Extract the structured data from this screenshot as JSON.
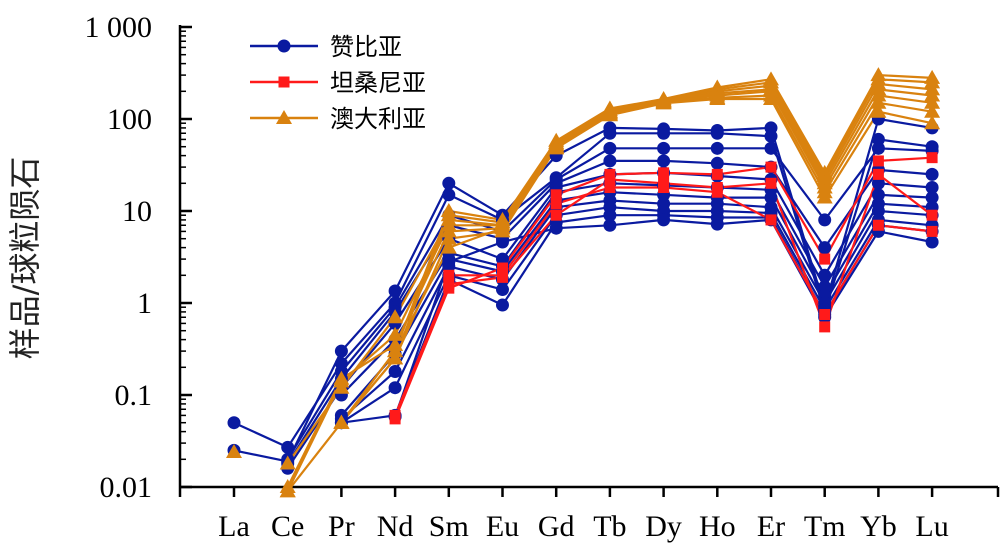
{
  "chart_data": {
    "type": "line",
    "title": "",
    "ylabel": "样品/球粒陨石",
    "xlabel": "",
    "categories": [
      "La",
      "Ce",
      "Pr",
      "Nd",
      "Sm",
      "Eu",
      "Gd",
      "Tb",
      "Dy",
      "Ho",
      "Er",
      "Tm",
      "Yb",
      "Lu"
    ],
    "y_scale": "log",
    "ylim": [
      0.01,
      1000
    ],
    "y_ticks": [
      {
        "value": 1000,
        "label": "1 000"
      },
      {
        "value": 100,
        "label": "100"
      },
      {
        "value": 10,
        "label": "10"
      },
      {
        "value": 1,
        "label": "1"
      },
      {
        "value": 0.1,
        "label": "0.1"
      },
      {
        "value": 0.01,
        "label": "0.01"
      }
    ],
    "grid": false,
    "legend_position": "top-left",
    "colors": {
      "zambia": "#0a1aa0",
      "tanzania": "#ff1a1a",
      "australia": "#d9820f"
    },
    "groups": [
      {
        "name": "赞比亚",
        "color_key": "zambia",
        "marker": "circle",
        "series": [
          [
            0.025,
            0.019,
            0.3,
            1.35,
            20,
            9,
            40,
            80,
            78,
            75,
            80,
            0.9,
            100,
            80
          ],
          [
            0.05,
            0.027,
            0.22,
            1.0,
            15,
            8,
            23,
            70,
            70,
            70,
            65,
            0.8,
            60,
            50
          ],
          [
            null,
            0.02,
            0.18,
            0.9,
            9,
            6,
            22,
            48,
            48,
            48,
            48,
            8,
            48,
            45
          ],
          [
            null,
            0.018,
            0.15,
            0.8,
            7,
            5,
            20,
            35,
            35,
            33,
            30,
            4,
            28,
            25
          ],
          [
            null,
            0.016,
            0.12,
            0.6,
            5,
            3,
            18,
            25,
            26,
            24,
            22,
            2,
            20,
            18
          ],
          [
            null,
            null,
            0.1,
            0.4,
            3.5,
            2.5,
            16,
            20,
            19,
            18,
            17,
            1.5,
            15,
            14
          ],
          [
            null,
            null,
            0.06,
            0.28,
            3,
            2.2,
            13,
            16,
            15,
            14,
            14,
            1.2,
            12,
            11
          ],
          [
            null,
            null,
            0.055,
            0.18,
            2.5,
            1.8,
            11,
            13,
            12,
            12,
            11,
            1.0,
            10,
            9
          ],
          [
            null,
            null,
            0.05,
            0.12,
            2.0,
            1.4,
            9,
            11,
            10,
            10,
            9.5,
            0.85,
            8,
            7
          ],
          [
            null,
            null,
            0.05,
            0.06,
            1.8,
            0.95,
            7.5,
            9,
            9,
            8.5,
            8.5,
            0.75,
            7,
            6
          ],
          [
            null,
            null,
            null,
            0.058,
            2.8,
            4.6,
            6.5,
            7,
            8,
            7.2,
            8,
            0.7,
            6,
            4.6
          ]
        ]
      },
      {
        "name": "坦桑尼亚",
        "color_key": "tanzania",
        "marker": "square",
        "series": [
          [
            null,
            null,
            null,
            0.055,
            1.45,
            2.4,
            15,
            25,
            26,
            25,
            30,
            3,
            35,
            38
          ],
          [
            null,
            null,
            null,
            0.06,
            1.6,
            1.9,
            9,
            22,
            20,
            18,
            20,
            0.55,
            25,
            9
          ],
          [
            null,
            null,
            null,
            null,
            2.0,
            2.0,
            12,
            18,
            18,
            16,
            8,
            0.75,
            7,
            6
          ]
        ]
      },
      {
        "name": "澳大利亚",
        "color_key": "australia",
        "marker": "triangle",
        "series": [
          [
            0.024,
            null,
            0.05,
            0.3,
            10,
            8,
            58,
            130,
            165,
            220,
            270,
            26,
            300,
            280
          ],
          [
            null,
            0.009,
            0.05,
            0.25,
            9,
            7.5,
            55,
            125,
            160,
            210,
            250,
            24,
            270,
            250
          ],
          [
            null,
            0.018,
            0.12,
            0.7,
            8,
            7,
            53,
            120,
            158,
            200,
            230,
            22,
            240,
            210
          ],
          [
            null,
            0.009,
            0.14,
            0.45,
            7,
            7,
            52,
            118,
            155,
            190,
            210,
            20,
            210,
            180
          ],
          [
            null,
            0.01,
            0.15,
            0.35,
            6,
            6.5,
            50,
            115,
            152,
            180,
            200,
            18,
            180,
            150
          ],
          [
            null,
            null,
            0.05,
            0.25,
            5,
            6,
            49,
            112,
            150,
            170,
            180,
            16,
            150,
            120
          ],
          [
            null,
            null,
            0.05,
            0.3,
            4,
            6.5,
            48,
            110,
            148,
            165,
            165,
            14,
            120,
            90
          ]
        ]
      }
    ]
  }
}
